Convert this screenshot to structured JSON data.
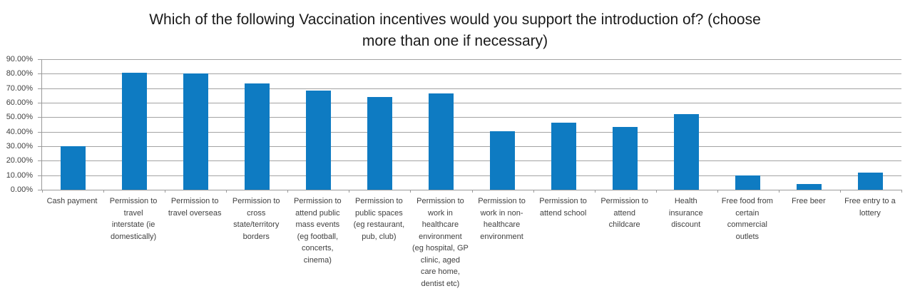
{
  "header": {
    "title_full": "Which of the following Vaccination incentives would you support the introduction of? (choose more than one if necessary)",
    "title_lines": [
      "Which of the following Vaccination incentives would you support the introduction of? (choose",
      "more than one if necessary)"
    ]
  },
  "chart_data": {
    "type": "bar",
    "title": "Which of the following Vaccination incentives would you support the introduction of? (choose more than one if necessary)",
    "xlabel": "",
    "ylabel": "",
    "ylim": [
      0,
      90
    ],
    "ytick_step": 10,
    "grid": true,
    "legend_position": "none",
    "ytick_labels": [
      "0.00%",
      "10.00%",
      "20.00%",
      "30.00%",
      "40.00%",
      "50.00%",
      "60.00%",
      "70.00%",
      "80.00%",
      "90.00%"
    ],
    "categories": [
      "Cash payment",
      "Permission to travel interstate (ie domestically)",
      "Permission to travel overseas",
      "Permission to cross state/territory borders",
      "Permission to attend public mass events (eg football, concerts, cinema)",
      "Permission to public spaces (eg restaurant, pub, club)",
      "Permission to work in healthcare environment (eg hospital, GP clinic, aged care home, dentist etc)",
      "Permission to work in non-healthcare environment",
      "Permission to attend school",
      "Permission to attend childcare",
      "Health insurance discount",
      "Free food from certain commercial outlets",
      "Free beer",
      "Free entry to a lottery"
    ],
    "category_display_lines": [
      [
        "Cash payment"
      ],
      [
        "Permission to",
        "travel",
        "interstate (ie",
        "domestically)"
      ],
      [
        "Permission to",
        "travel overseas"
      ],
      [
        "Permission to",
        "cross",
        "state/territory",
        "borders"
      ],
      [
        "Permission to",
        "attend public",
        "mass events",
        "(eg football,",
        "concerts,",
        "cinema)"
      ],
      [
        "Permission to",
        "public spaces",
        "(eg restaurant,",
        "pub, club)"
      ],
      [
        "Permission to",
        "work in",
        "healthcare",
        "environment",
        "(eg hospital, GP",
        "clinic, aged",
        "care home,",
        "dentist etc)"
      ],
      [
        "Permission to",
        "work in non-",
        "healthcare",
        "environment"
      ],
      [
        "Permission to",
        "attend school"
      ],
      [
        "Permission to",
        "attend",
        "childcare"
      ],
      [
        "Health",
        "insurance",
        "discount"
      ],
      [
        "Free food from",
        "certain",
        "commercial",
        "outlets"
      ],
      [
        "Free beer"
      ],
      [
        "Free entry to a",
        "lottery"
      ]
    ],
    "values": [
      30,
      80.5,
      80,
      73.5,
      68.5,
      64,
      66.5,
      40.5,
      46,
      43.5,
      52,
      10,
      4,
      12
    ],
    "bar_color": "#0e7bc2",
    "gridline_color": "#a3a3a3",
    "axis_color": "#9a9a9a",
    "label_color": "#404040",
    "title_color": "#1a1a1a"
  }
}
